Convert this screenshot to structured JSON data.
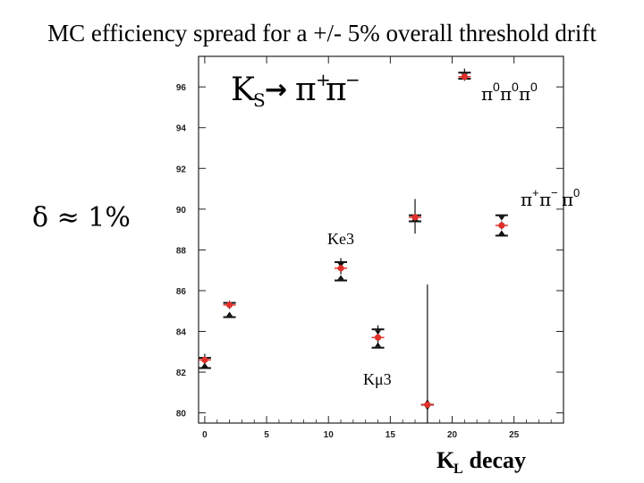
{
  "slide": {
    "title": "MC efficiency spread for a +/- 5% overall threshold drift",
    "delta_note": "δ ≈ 1%"
  },
  "chart_data": {
    "type": "scatter",
    "title": "",
    "xlabel_main": "K",
    "xlabel_sub": "L",
    "xlabel_rest": " decay",
    "ylabel": "",
    "xlim": [
      -0.5,
      29
    ],
    "ylim": [
      79.5,
      97.5
    ],
    "x_ticks": [
      0,
      5,
      10,
      15,
      20,
      25
    ],
    "y_ticks": [
      80,
      82,
      84,
      86,
      88,
      90,
      92,
      94,
      96
    ],
    "grid": false,
    "annotations": {
      "ks_K": "K",
      "ks_S": "S",
      "ks_arrow": "→",
      "ks_pi": "π",
      "ks_plus": "+",
      "ks_pi2": "π",
      "ks_minus": "−",
      "neutral_pi": "π",
      "neutral_zero": "0",
      "charged_pi": "π",
      "charged_plus": "+",
      "charged_minus": "−",
      "charged_zero": "0",
      "ke3": "Ke3",
      "kmu3": "Kμ3"
    },
    "points": [
      {
        "x": 0,
        "nominal": 82.6,
        "high": 82.7,
        "low": 82.2,
        "err_low": 82.3,
        "err_high": 82.9
      },
      {
        "x": 2,
        "nominal": 85.3,
        "high": 85.4,
        "low": 84.7,
        "err_low": 85.1,
        "err_high": 85.5
      },
      {
        "x": 11,
        "nominal": 87.1,
        "high": 87.4,
        "low": 86.5,
        "err_low": 86.8,
        "err_high": 87.6
      },
      {
        "x": 14,
        "nominal": 83.7,
        "high": 84.1,
        "low": 83.2,
        "err_low": 83.4,
        "err_high": 84.3
      },
      {
        "x": 17,
        "nominal": 89.6,
        "high": 89.7,
        "low": 89.4,
        "err_low": 88.8,
        "err_high": 90.5
      },
      {
        "x": 18,
        "nominal": 80.4,
        "high": 80.4,
        "low": 80.4,
        "err_low": 79.5,
        "err_high": 86.3
      },
      {
        "x": 21,
        "nominal": 96.5,
        "high": 96.7,
        "low": 96.4,
        "err_low": 96.3,
        "err_high": 96.9
      },
      {
        "x": 24,
        "nominal": 89.2,
        "high": 89.7,
        "low": 88.7,
        "err_low": 89.0,
        "err_high": 89.4
      }
    ],
    "colors": {
      "nominal": "#e0302a",
      "high": "#111111",
      "low": "#111111",
      "frame": "#222222"
    }
  }
}
